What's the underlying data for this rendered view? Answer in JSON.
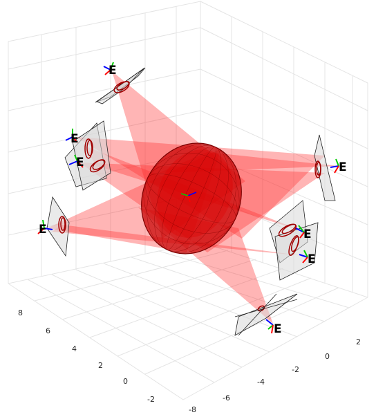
{
  "axes": {
    "x_ticks": [
      "-8",
      "-6",
      "-4",
      "-2",
      "0",
      "2"
    ],
    "y_ticks": [
      "8",
      "6",
      "4",
      "2",
      "0",
      "-2"
    ]
  },
  "cameras": [
    {
      "id": "cam-top-left",
      "label": "E"
    },
    {
      "id": "cam-left-upper",
      "label": "E"
    },
    {
      "id": "cam-left-mid",
      "label": "E"
    },
    {
      "id": "cam-left-lower",
      "label": "E"
    },
    {
      "id": "cam-right",
      "label": "E"
    },
    {
      "id": "cam-right-lower-1",
      "label": "E"
    },
    {
      "id": "cam-right-lower-2",
      "label": "E"
    },
    {
      "id": "cam-bottom",
      "label": "E"
    }
  ],
  "colors": {
    "frustum": "#ff2a2a",
    "ellipsoid": "#c00000",
    "image_ellipse": "#a00000",
    "image_plane": "#d9d9d9",
    "grid": "#e3e3e3",
    "axis_x": "#0000ff",
    "axis_y": "#00cc00",
    "axis_z": "#ff0000"
  }
}
